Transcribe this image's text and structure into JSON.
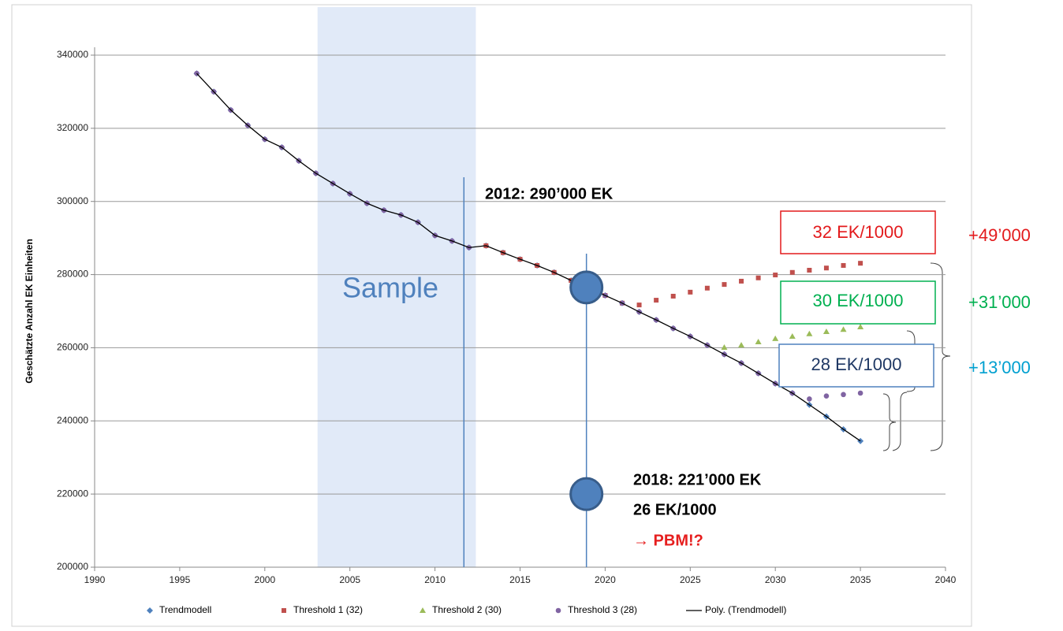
{
  "chart_data": {
    "type": "scatter",
    "y_label": "Geschätzte Anzahl EK Einheiten",
    "xlim": [
      1990,
      2040
    ],
    "xticks": [
      1990,
      1995,
      2000,
      2005,
      2010,
      2015,
      2020,
      2025,
      2030,
      2035,
      2040
    ],
    "ylim": [
      200000,
      340000
    ],
    "yticks": [
      200000,
      220000,
      240000,
      260000,
      280000,
      300000,
      320000,
      340000
    ],
    "grid": true,
    "x": [
      1996,
      1997,
      1998,
      1999,
      2000,
      2001,
      2002,
      2003,
      2004,
      2005,
      2006,
      2007,
      2008,
      2009,
      2010,
      2011,
      2012,
      2013,
      2014,
      2015,
      2016,
      2017,
      2018,
      2019,
      2020,
      2021,
      2022,
      2023,
      2024,
      2025,
      2026,
      2027,
      2028,
      2029,
      2030,
      2031,
      2032,
      2033,
      2034,
      2035
    ],
    "series": [
      {
        "name": "Trendmodell",
        "color": "#4f81bd",
        "marker": "diamond",
        "values": [
          335000,
          330000,
          325000,
          320800,
          317000,
          314800,
          311100,
          307700,
          304900,
          302100,
          299500,
          297600,
          296300,
          294300,
          290700,
          289200,
          287400,
          287900,
          286000,
          284200,
          282500,
          280600,
          278400,
          276500,
          274300,
          272200,
          269800,
          267600,
          265300,
          263100,
          260700,
          258200,
          255800,
          253000,
          250200,
          247600,
          244400,
          241200,
          237700,
          234500
        ]
      },
      {
        "name": "Threshold 1 (32)",
        "color": "#c0504d",
        "marker": "square",
        "values": [
          null,
          null,
          null,
          null,
          null,
          null,
          null,
          null,
          null,
          null,
          null,
          null,
          null,
          null,
          null,
          null,
          null,
          287900,
          286000,
          284200,
          282500,
          280600,
          278400,
          276500,
          274300,
          272200,
          271700,
          273000,
          274100,
          275200,
          276300,
          277300,
          278200,
          279100,
          279900,
          280600,
          281200,
          281800,
          282500,
          283100
        ]
      },
      {
        "name": "Threshold 2 (30)",
        "color": "#9bbb59",
        "marker": "triangle",
        "values": [
          null,
          null,
          null,
          null,
          null,
          null,
          null,
          null,
          null,
          null,
          null,
          null,
          null,
          null,
          null,
          null,
          null,
          null,
          null,
          null,
          null,
          null,
          null,
          null,
          null,
          null,
          null,
          null,
          null,
          null,
          null,
          260100,
          260700,
          261600,
          262500,
          263100,
          263800,
          264400,
          265000,
          265700
        ]
      },
      {
        "name": "Threshold 3 (28)",
        "color": "#8064a2",
        "marker": "circle",
        "values": [
          335000,
          330000,
          325000,
          320800,
          317000,
          314800,
          311100,
          307700,
          304900,
          302100,
          299500,
          297600,
          296300,
          294300,
          290700,
          289200,
          287400,
          null,
          null,
          null,
          null,
          null,
          null,
          null,
          274300,
          272200,
          269800,
          267600,
          265300,
          263100,
          260700,
          258200,
          255800,
          253000,
          250200,
          247600,
          246000,
          246800,
          247200,
          247600
        ]
      }
    ],
    "trendline": {
      "name": "Poly. (Trendmodell)",
      "color": "#000000"
    },
    "sample": {
      "label": "Sample",
      "x": [
        2003.1,
        2012.4
      ]
    },
    "vlines": [
      2011.7,
      2018.9
    ],
    "markers": [
      {
        "x": 2018.9,
        "y": 276500
      },
      {
        "x": 2018.9,
        "y": 220000
      }
    ],
    "annotations": [
      {
        "text": "2012: 290’000 EK",
        "color": "#000000"
      },
      {
        "text": "2018: 221’000 EK",
        "color": "#000000"
      },
      {
        "text": "26 EK/1000",
        "color": "#000000"
      },
      {
        "text": "→ PBM!?",
        "color": "#e61e1e"
      }
    ],
    "boxes": [
      {
        "text": "32 EK/1000",
        "color": "#e31a1c",
        "delta": "+49’000"
      },
      {
        "text": "30 EK/1000",
        "color": "#00b050",
        "delta": "+31’000"
      },
      {
        "text": "28 EK/1000",
        "color": "#4f81bd",
        "delta": "+13’000"
      }
    ]
  }
}
